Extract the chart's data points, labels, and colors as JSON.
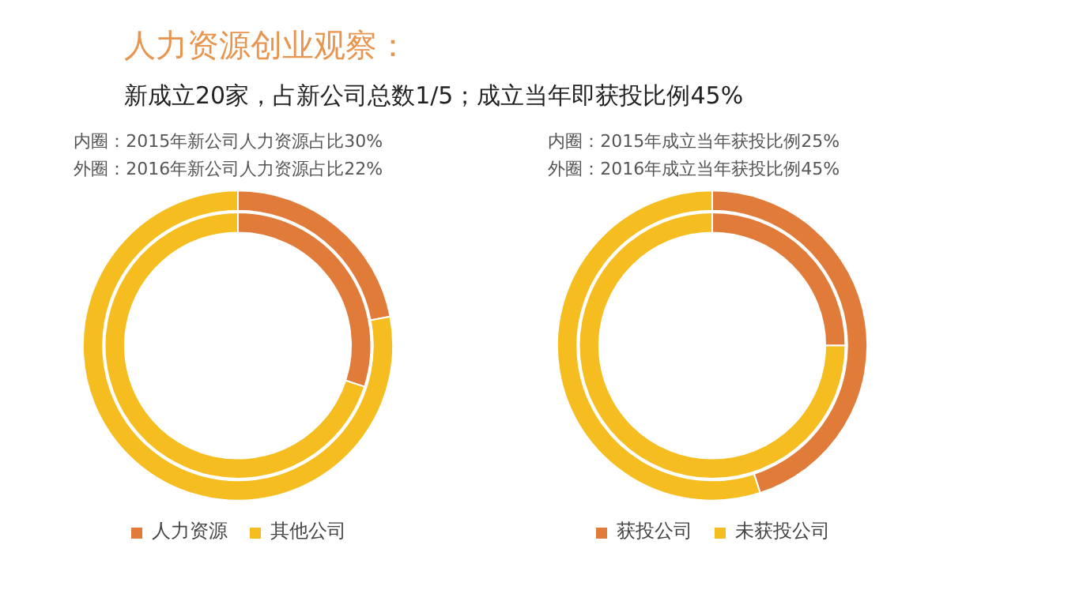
{
  "chart_data": [
    {
      "type": "donut",
      "title": "人力资源创业观察：",
      "subtitle": "新成立20家，占新公司总数1/5；成立当年即获投比例45%",
      "annotations": [
        "内圈：2015年新公司人力资源占比30%",
        "外圈：2016年新公司人力资源占比22%"
      ],
      "categories": [
        "人力资源",
        "其他公司"
      ],
      "colors": [
        "#e07b39",
        "#f5bd1f"
      ],
      "legend": "bottom",
      "series": [
        {
          "values": [
            30,
            70
          ]
        },
        {
          "values": [
            22,
            78
          ]
        }
      ]
    },
    {
      "type": "donut",
      "annotations": [
        "内圈：2015年成立当年获投比例25%",
        "外圈：2016年成立当年获投比例45%"
      ],
      "categories": [
        "获投公司",
        "未获投公司"
      ],
      "colors": [
        "#e07b39",
        "#f5bd1f"
      ],
      "legend": "bottom",
      "series": [
        {
          "values": [
            25,
            75
          ]
        },
        {
          "values": [
            45,
            55
          ]
        }
      ]
    }
  ]
}
